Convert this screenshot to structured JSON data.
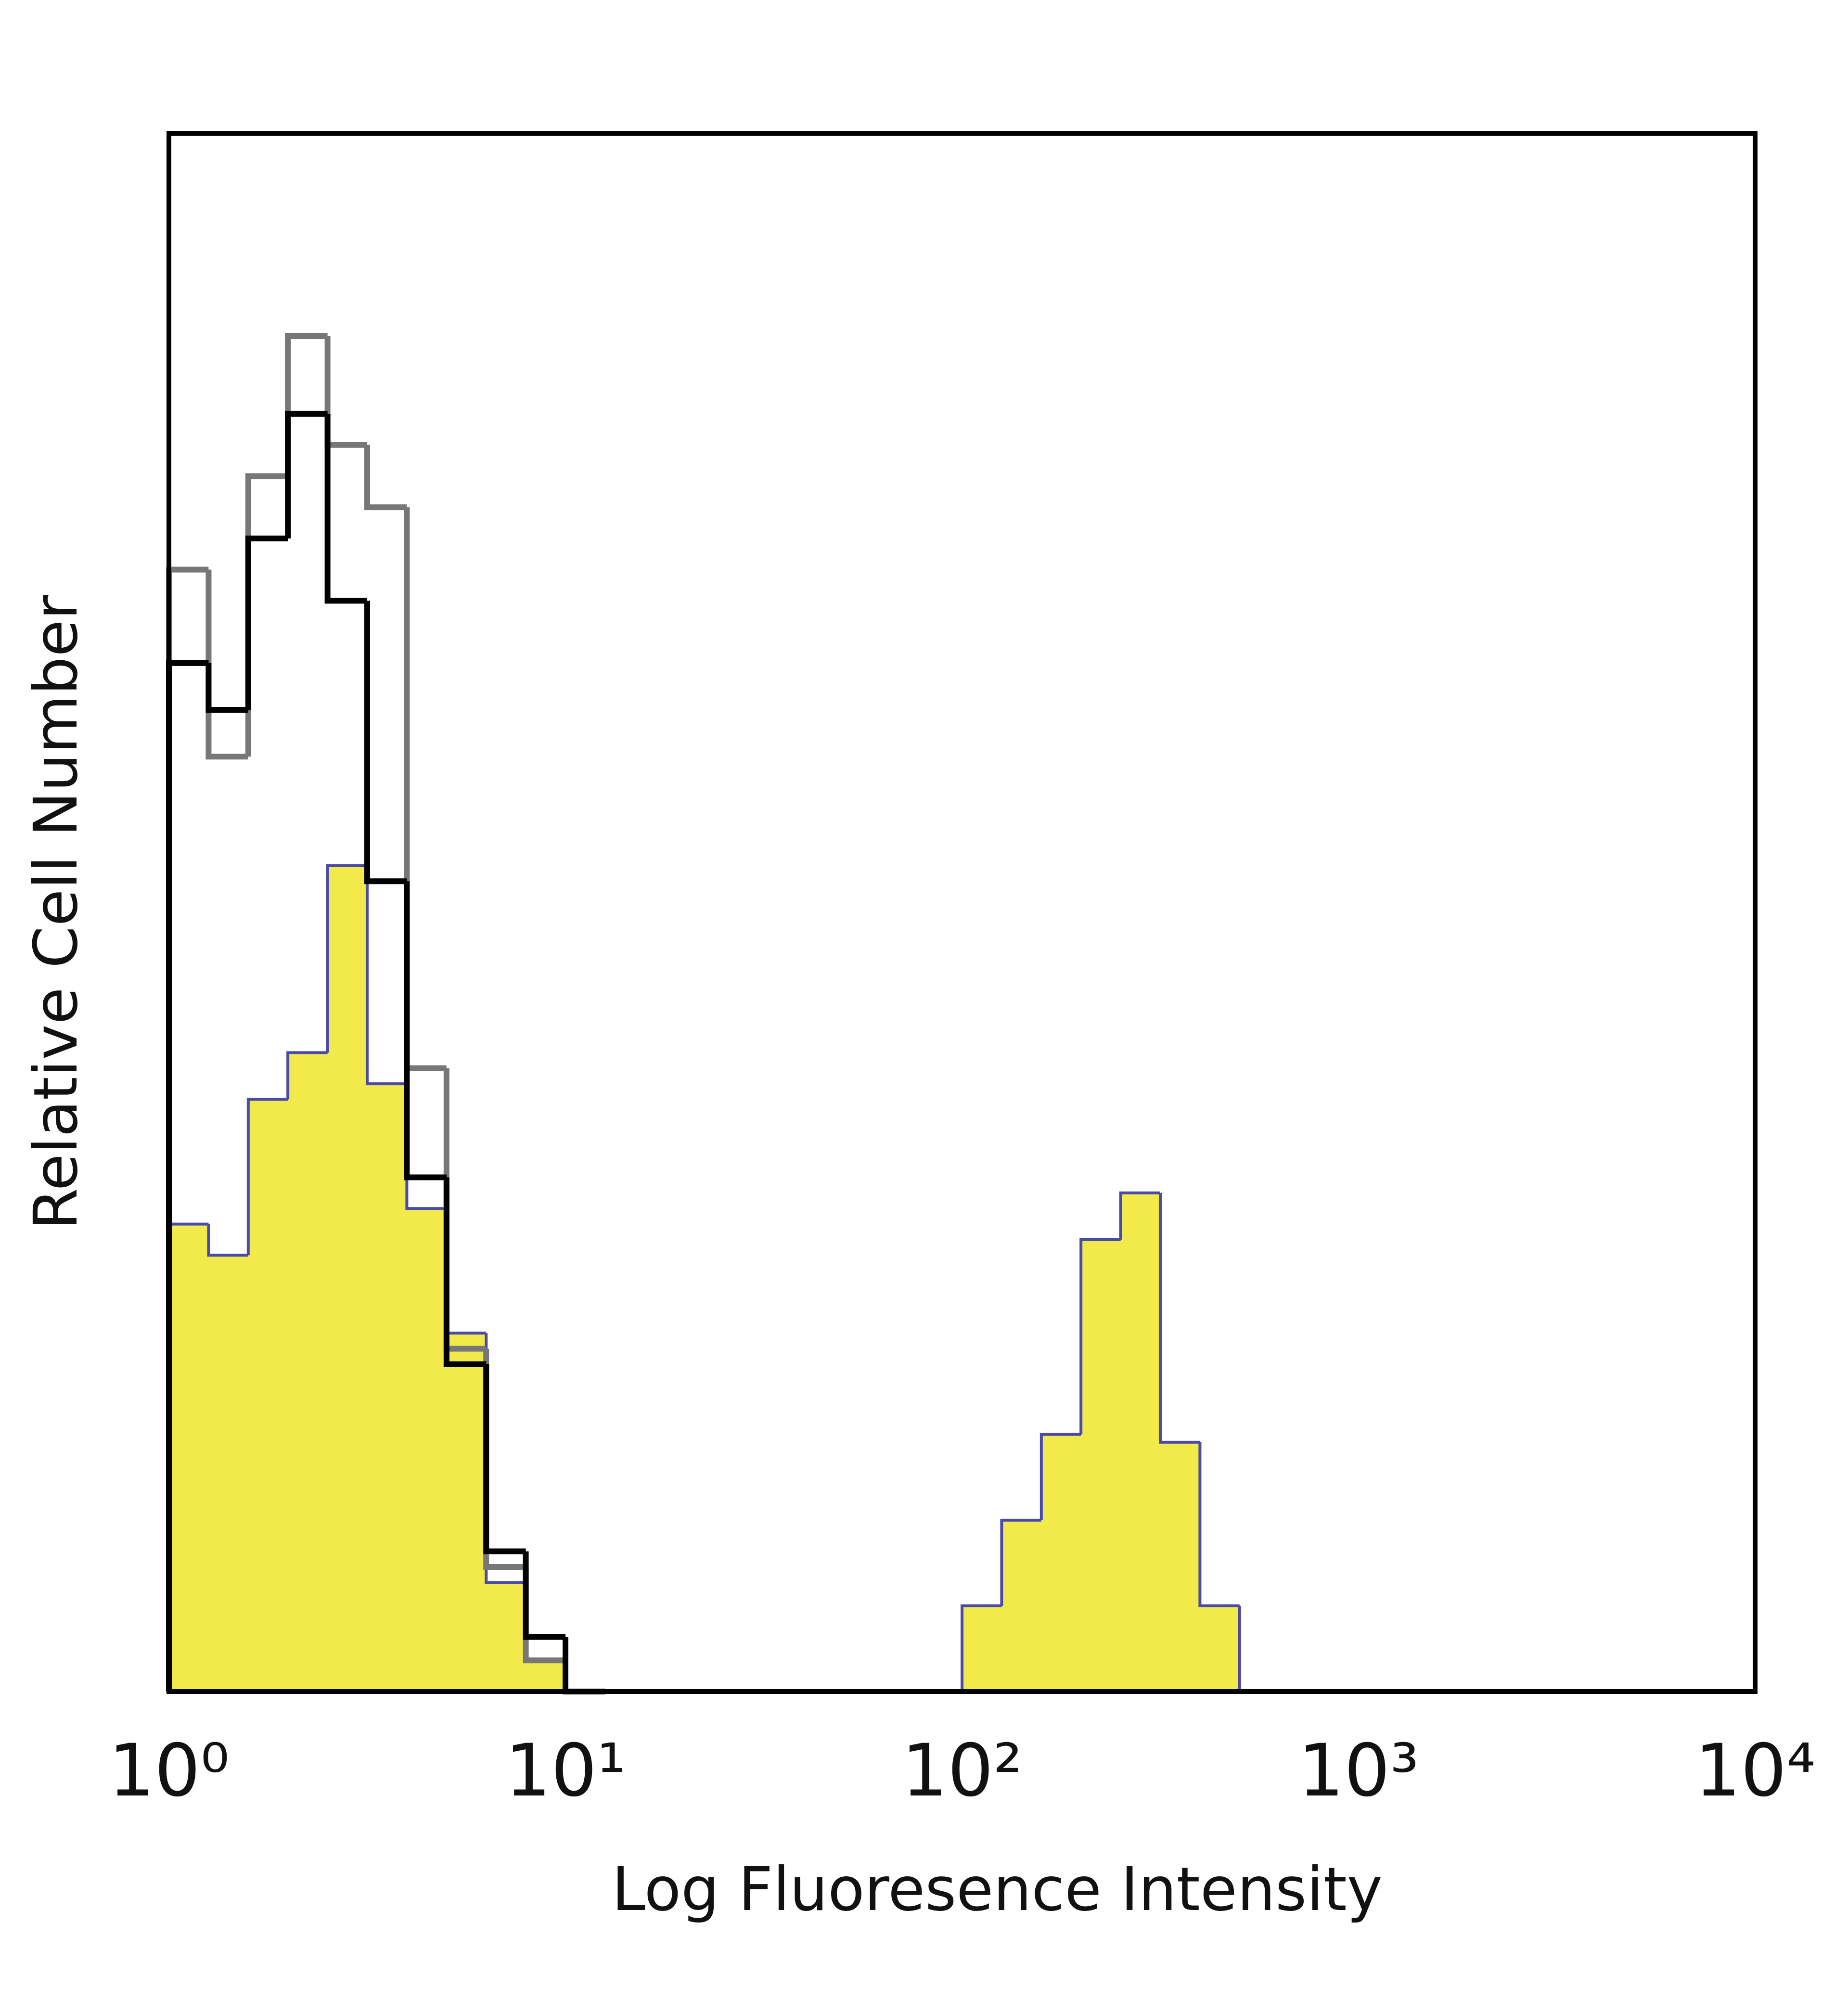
{
  "chart_data": {
    "type": "histogram",
    "x_label": "Log Fluoresence Intensity",
    "y_label": "Relative Cell Number",
    "xscale": "log",
    "xlim": [
      1,
      10000
    ],
    "xticks": [
      {
        "value": 1,
        "label": "10⁰"
      },
      {
        "value": 10,
        "label": "10¹"
      },
      {
        "value": 100,
        "label": "10²"
      },
      {
        "value": 1000,
        "label": "10³"
      },
      {
        "value": 10000,
        "label": "10⁴"
      }
    ],
    "ylim": [
      0,
      100
    ],
    "bins": [
      1,
      1.259,
      1.585,
      1.995,
      2.512,
      3.162,
      3.981,
      5.012,
      6.31,
      7.943,
      10,
      12.59,
      15.85,
      19.95,
      25.12,
      31.62,
      39.81,
      50.12,
      63.1,
      79.43,
      100,
      125.9,
      158.5,
      199.5,
      251.2,
      316.2,
      398.1,
      501.2,
      631,
      794.3,
      1000,
      1259,
      1585,
      1995,
      2512,
      3162,
      3981,
      5012,
      6310,
      7943,
      10000
    ],
    "series": [
      {
        "color": "#f2ea4a",
        "edge_color": "#4a4aa8",
        "filled": true,
        "values": [
          30,
          28,
          38,
          41,
          53,
          39,
          31,
          23,
          7,
          2,
          0,
          0,
          0,
          0,
          0,
          0,
          0,
          0,
          0,
          0,
          5.5,
          11,
          16.5,
          29,
          32,
          16,
          5.5,
          0,
          0,
          0,
          0,
          0,
          0,
          0,
          0,
          0,
          0,
          0,
          0,
          0
        ]
      },
      {
        "color": "#777777",
        "filled": false,
        "values": [
          72,
          60,
          78,
          87,
          80,
          76,
          40,
          22,
          8,
          2,
          0,
          0,
          0,
          0,
          0,
          0,
          0,
          0,
          0,
          0,
          0,
          0,
          0,
          0,
          0,
          0,
          0,
          0,
          0,
          0,
          0,
          0,
          0,
          0,
          0,
          0,
          0,
          0,
          0,
          0
        ]
      },
      {
        "color": "#000000",
        "filled": false,
        "values": [
          66,
          63,
          74,
          82,
          70,
          52,
          33,
          21,
          9,
          3.5,
          0,
          0,
          0,
          0,
          0,
          0,
          0,
          0,
          0,
          0,
          0,
          0,
          0,
          0,
          0,
          0,
          0,
          0,
          0,
          0,
          0,
          0,
          0,
          0,
          0,
          0,
          0,
          0,
          0,
          0
        ]
      }
    ]
  }
}
